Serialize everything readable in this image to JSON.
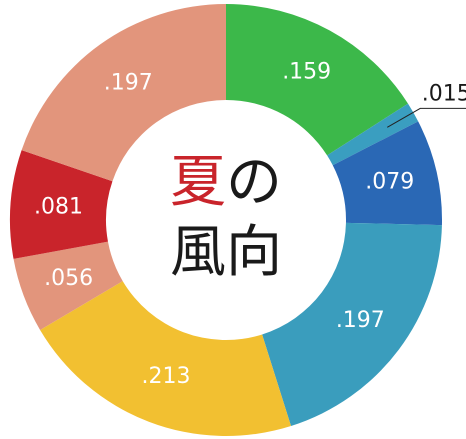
{
  "chart_data": {
    "type": "donut",
    "title": [
      "夏",
      "の",
      "風向"
    ],
    "title_highlight_color": "#c9242b",
    "values": [
      0.159,
      0.015,
      0.079,
      0.197,
      0.213,
      0.056,
      0.081,
      0.197
    ],
    "value_labels": [
      ".159",
      ".015",
      ".079",
      ".197",
      ".213",
      ".056",
      ".081",
      ".197"
    ],
    "colors": [
      "#3cb84a",
      "#3a9ec0",
      "#2a68b5",
      "#3a9dbd",
      "#f2c031",
      "#e2957c",
      "#c9242b",
      "#e2957c"
    ]
  }
}
